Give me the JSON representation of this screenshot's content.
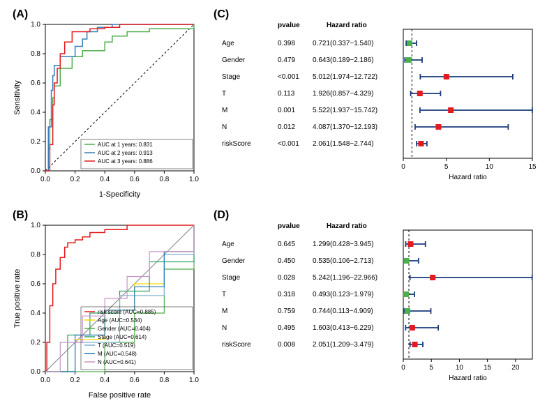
{
  "panelA": {
    "label": "(A)",
    "type": "line",
    "xlabel": "1-Specificity",
    "ylabel": "Sensitivity",
    "xlim": [
      0,
      1
    ],
    "ylim": [
      0,
      1
    ],
    "xticks": [
      0.0,
      0.2,
      0.4,
      0.6,
      0.8,
      1.0
    ],
    "yticks": [
      0.0,
      0.2,
      0.4,
      0.6,
      0.8,
      1.0
    ],
    "axis_fontsize": 10,
    "label_fontsize": 11,
    "background_color": "#ffffff",
    "border_color": "#000000",
    "diagonal_dash": "3,3",
    "legend_items": [
      {
        "text": "AUC at 1 years: 0.831",
        "color": "#4daf4a"
      },
      {
        "text": "AUC at 2 years: 0.913",
        "color": "#377eb8"
      },
      {
        "text": "AUC at 3 years: 0.886",
        "color": "#e41a1c"
      }
    ],
    "series": [
      {
        "color": "#4daf4a",
        "width": 1.5,
        "points": [
          [
            0,
            0
          ],
          [
            0.02,
            0.15
          ],
          [
            0.03,
            0.35
          ],
          [
            0.05,
            0.5
          ],
          [
            0.06,
            0.58
          ],
          [
            0.1,
            0.7
          ],
          [
            0.18,
            0.78
          ],
          [
            0.25,
            0.82
          ],
          [
            0.3,
            0.82
          ],
          [
            0.4,
            0.88
          ],
          [
            0.45,
            0.92
          ],
          [
            0.55,
            0.95
          ],
          [
            0.7,
            0.97
          ],
          [
            1,
            1
          ]
        ]
      },
      {
        "color": "#377eb8",
        "width": 1.5,
        "points": [
          [
            0,
            0
          ],
          [
            0.02,
            0.3
          ],
          [
            0.04,
            0.55
          ],
          [
            0.05,
            0.65
          ],
          [
            0.06,
            0.72
          ],
          [
            0.1,
            0.78
          ],
          [
            0.15,
            0.78
          ],
          [
            0.2,
            0.85
          ],
          [
            0.25,
            0.9
          ],
          [
            0.28,
            0.95
          ],
          [
            0.35,
            0.98
          ],
          [
            0.45,
            1.0
          ],
          [
            1,
            1
          ]
        ]
      },
      {
        "color": "#e41a1c",
        "width": 1.5,
        "points": [
          [
            0,
            0
          ],
          [
            0.03,
            0.18
          ],
          [
            0.05,
            0.45
          ],
          [
            0.06,
            0.6
          ],
          [
            0.08,
            0.7
          ],
          [
            0.1,
            0.8
          ],
          [
            0.13,
            0.88
          ],
          [
            0.18,
            0.95
          ],
          [
            0.3,
            0.97
          ],
          [
            0.4,
            0.98
          ],
          [
            0.5,
            1.0
          ],
          [
            1,
            1
          ]
        ]
      }
    ]
  },
  "panelB": {
    "label": "(B)",
    "type": "line",
    "xlabel": "False positive rate",
    "ylabel": "True positive rate",
    "xlim": [
      0,
      1
    ],
    "ylim": [
      0,
      1
    ],
    "xticks": [
      0.0,
      0.2,
      0.4,
      0.6,
      0.8,
      1.0
    ],
    "yticks": [
      0.0,
      0.2,
      0.4,
      0.6,
      0.8,
      1.0
    ],
    "axis_fontsize": 10,
    "label_fontsize": 11,
    "background_color": "#ffffff",
    "border_color": "#000000",
    "diagonal_color": "#808080",
    "legend_items": [
      {
        "text": "risk score (AUC=0.885)",
        "color": "#e41a1c"
      },
      {
        "text": "Age (AUC=0.534)",
        "color": "#ffd700"
      },
      {
        "text": "Gender (AUC=0.404)",
        "color": "#4daf4a"
      },
      {
        "text": "Stage (AUC=0.614)",
        "color": "#2ca25f"
      },
      {
        "text": "T (AUC=0.519)",
        "color": "#80b1d3"
      },
      {
        "text": "M (AUC=0.548)",
        "color": "#1f78b4"
      },
      {
        "text": "N (AUC=0.641)",
        "color": "#c994c7"
      }
    ],
    "series": [
      {
        "color": "#e41a1c",
        "width": 1.5,
        "points": [
          [
            0,
            0
          ],
          [
            0.01,
            0.2
          ],
          [
            0.03,
            0.45
          ],
          [
            0.05,
            0.6
          ],
          [
            0.07,
            0.7
          ],
          [
            0.1,
            0.78
          ],
          [
            0.13,
            0.85
          ],
          [
            0.15,
            0.88
          ],
          [
            0.2,
            0.9
          ],
          [
            0.25,
            0.92
          ],
          [
            0.3,
            0.95
          ],
          [
            0.4,
            0.97
          ],
          [
            0.55,
            1.0
          ],
          [
            1,
            1
          ]
        ]
      },
      {
        "color": "#ffd700",
        "width": 1.2,
        "points": [
          [
            0,
            0
          ],
          [
            0.2,
            0.22
          ],
          [
            0.4,
            0.42
          ],
          [
            0.6,
            0.6
          ],
          [
            0.8,
            0.82
          ],
          [
            1,
            1
          ]
        ]
      },
      {
        "color": "#4daf4a",
        "width": 1.2,
        "points": [
          [
            0,
            0
          ],
          [
            0.4,
            0.2
          ],
          [
            0.6,
            0.4
          ],
          [
            0.8,
            0.7
          ],
          [
            1,
            1
          ]
        ]
      },
      {
        "color": "#2ca25f",
        "width": 1.2,
        "points": [
          [
            0,
            0
          ],
          [
            0.15,
            0.25
          ],
          [
            0.3,
            0.4
          ],
          [
            0.5,
            0.55
          ],
          [
            0.7,
            0.75
          ],
          [
            1,
            1
          ]
        ]
      },
      {
        "color": "#80b1d3",
        "width": 1.2,
        "points": [
          [
            0,
            0
          ],
          [
            0.2,
            0.2
          ],
          [
            0.5,
            0.52
          ],
          [
            0.8,
            0.8
          ],
          [
            1,
            1
          ]
        ]
      },
      {
        "color": "#1f78b4",
        "width": 1.2,
        "points": [
          [
            0,
            0
          ],
          [
            0.2,
            0.25
          ],
          [
            0.4,
            0.42
          ],
          [
            0.6,
            0.58
          ],
          [
            0.8,
            0.82
          ],
          [
            1,
            1
          ]
        ]
      },
      {
        "color": "#c994c7",
        "width": 1.2,
        "points": [
          [
            0,
            0
          ],
          [
            0.1,
            0.2
          ],
          [
            0.25,
            0.38
          ],
          [
            0.4,
            0.5
          ],
          [
            0.55,
            0.65
          ],
          [
            0.7,
            0.82
          ],
          [
            1,
            1
          ]
        ]
      }
    ]
  },
  "panelC": {
    "label": "(C)",
    "type": "forest",
    "xlabel": "Hazard ratio",
    "xlim": [
      0,
      15
    ],
    "xticks": [
      0,
      5,
      10,
      15
    ],
    "headers": {
      "pvalue": "pvalue",
      "hr": "Hazard ratio"
    },
    "label_fontsize": 10,
    "axis_fontsize": 10,
    "ref_line_x": 1,
    "ref_line_dash": "3,3",
    "whisker_color": "#1a3a7a",
    "box_size": 8,
    "rows": [
      {
        "label": "Age",
        "pvalue": "0.398",
        "hr_text": "0.721(0.337−1.540)",
        "hr": 0.721,
        "lo": 0.337,
        "hi": 1.54,
        "box_color": "#4daf4a"
      },
      {
        "label": "Gender",
        "pvalue": "0.479",
        "hr_text": "0.643(0.189−2.186)",
        "hr": 0.643,
        "lo": 0.189,
        "hi": 2.186,
        "box_color": "#4daf4a"
      },
      {
        "label": "Stage",
        "pvalue": "<0.001",
        "hr_text": "5.012(1.974−12.722)",
        "hr": 5.012,
        "lo": 1.974,
        "hi": 12.722,
        "box_color": "#e41a1c"
      },
      {
        "label": "T",
        "pvalue": "0.113",
        "hr_text": "1.926(0.857−4.329)",
        "hr": 1.926,
        "lo": 0.857,
        "hi": 4.329,
        "box_color": "#e41a1c"
      },
      {
        "label": "M",
        "pvalue": "0.001",
        "hr_text": "5.522(1.937−15.742)",
        "hr": 5.522,
        "lo": 1.937,
        "hi": 15.742,
        "box_color": "#e41a1c"
      },
      {
        "label": "N",
        "pvalue": "0.012",
        "hr_text": "4.087(1.370−12.193)",
        "hr": 4.087,
        "lo": 1.37,
        "hi": 12.193,
        "box_color": "#e41a1c"
      },
      {
        "label": "riskScore",
        "pvalue": "<0.001",
        "hr_text": "2.061(1.548−2.744)",
        "hr": 2.061,
        "lo": 1.548,
        "hi": 2.744,
        "box_color": "#e41a1c"
      }
    ]
  },
  "panelD": {
    "label": "(D)",
    "type": "forest",
    "xlabel": "Hazard ratio",
    "xlim": [
      0,
      23
    ],
    "xticks": [
      0,
      5,
      10,
      15,
      20
    ],
    "headers": {
      "pvalue": "pvalue",
      "hr": "Hazard ratio"
    },
    "label_fontsize": 10,
    "axis_fontsize": 10,
    "ref_line_x": 1,
    "ref_line_dash": "3,3",
    "whisker_color": "#1a3a7a",
    "box_size": 8,
    "rows": [
      {
        "label": "Age",
        "pvalue": "0.645",
        "hr_text": "1.299(0.428−3.945)",
        "hr": 1.299,
        "lo": 0.428,
        "hi": 3.945,
        "box_color": "#e41a1c"
      },
      {
        "label": "Gender",
        "pvalue": "0.450",
        "hr_text": "0.535(0.106−2.713)",
        "hr": 0.535,
        "lo": 0.106,
        "hi": 2.713,
        "box_color": "#4daf4a"
      },
      {
        "label": "Stage",
        "pvalue": "0.028",
        "hr_text": "5.242(1.196−22.966)",
        "hr": 5.242,
        "lo": 1.196,
        "hi": 22.966,
        "box_color": "#e41a1c"
      },
      {
        "label": "T",
        "pvalue": "0.318",
        "hr_text": "0.493(0.123−1.979)",
        "hr": 0.493,
        "lo": 0.123,
        "hi": 1.979,
        "box_color": "#4daf4a"
      },
      {
        "label": "M",
        "pvalue": "0.759",
        "hr_text": "0.744(0.113−4.909)",
        "hr": 0.744,
        "lo": 0.113,
        "hi": 4.909,
        "box_color": "#4daf4a"
      },
      {
        "label": "N",
        "pvalue": "0.495",
        "hr_text": "1.603(0.413−6.229)",
        "hr": 1.603,
        "lo": 0.413,
        "hi": 6.229,
        "box_color": "#e41a1c"
      },
      {
        "label": "riskScore",
        "pvalue": "0.008",
        "hr_text": "2.051(1.209−3.479)",
        "hr": 2.051,
        "lo": 1.209,
        "hi": 3.479,
        "box_color": "#e41a1c"
      }
    ]
  }
}
